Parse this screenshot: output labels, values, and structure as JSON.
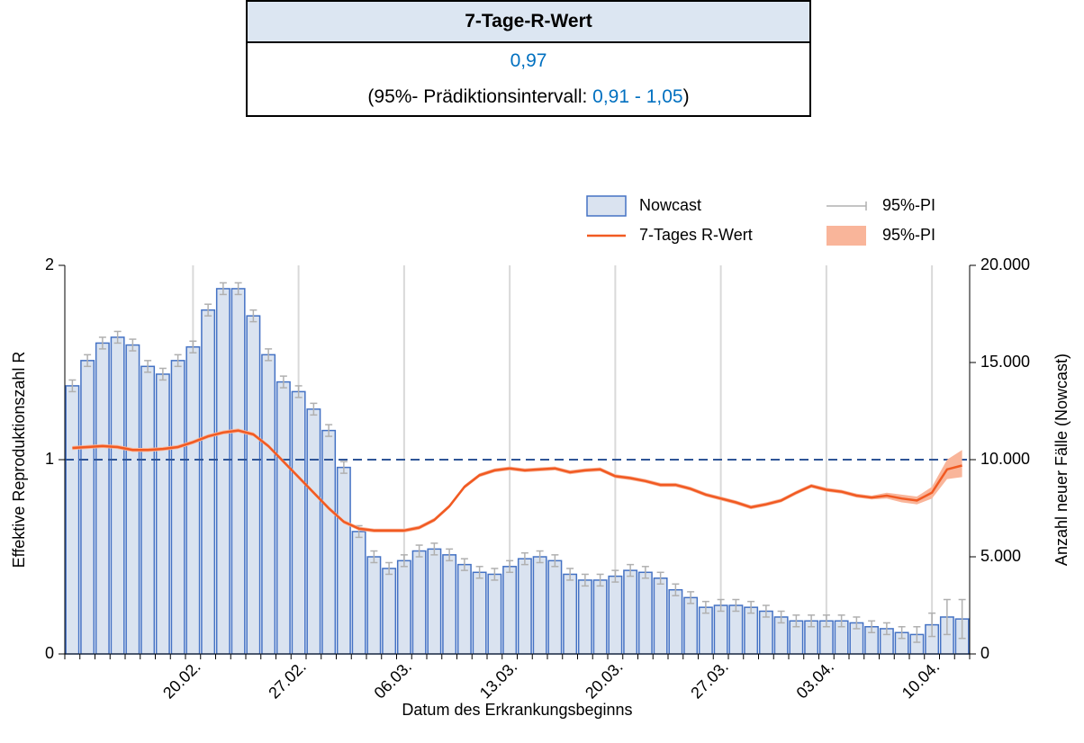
{
  "summary": {
    "title": "7-Tage-R-Wert",
    "value": "0,97",
    "interval_prefix": "(95%- Prädiktionsintervall: ",
    "interval": "0,91 - 1,05",
    "interval_suffix": ")"
  },
  "chart_data": {
    "type": "bar-line",
    "x_label": "Datum des Erkrankungsbeginns",
    "y_label": "Effektive Reproduktionszahl R",
    "y2_label": "Anzahl neuer Fälle (Nowcast)",
    "categories": [
      null,
      null,
      null,
      null,
      null,
      null,
      null,
      null,
      "20.02.",
      null,
      null,
      null,
      null,
      null,
      null,
      "27.02.",
      null,
      null,
      null,
      null,
      null,
      null,
      "06.03.",
      null,
      null,
      null,
      null,
      null,
      null,
      "13.03.",
      null,
      null,
      null,
      null,
      null,
      null,
      "20.03.",
      null,
      null,
      null,
      null,
      null,
      null,
      "27.03.",
      null,
      null,
      null,
      null,
      null,
      null,
      "03.04.",
      null,
      null,
      null,
      null,
      null,
      null,
      "10.04.",
      null,
      null
    ],
    "ylim": [
      0,
      2
    ],
    "yticks": [
      0,
      1,
      2
    ],
    "y2lim": [
      0,
      20000
    ],
    "y2ticks": [
      0,
      {
        "value": 5000,
        "label": "5.000"
      },
      {
        "value": 10000,
        "label": "10.000"
      },
      {
        "value": 15000,
        "label": "15.000"
      },
      {
        "value": 20000,
        "label": "20.000"
      }
    ],
    "reference_line": 1,
    "reference_color": "#2f5597",
    "grid": true,
    "series": [
      {
        "name": "Nowcast",
        "kind": "bar",
        "axis": "y2",
        "color": "#dae3f0",
        "edge_color": "#4472c4",
        "values": [
          13800,
          15100,
          16000,
          16300,
          15900,
          14800,
          14400,
          15100,
          15800,
          17700,
          18800,
          18800,
          17400,
          15400,
          14000,
          13500,
          12600,
          11500,
          9600,
          6300,
          5000,
          4400,
          4800,
          5300,
          5400,
          5100,
          4600,
          4200,
          4100,
          4500,
          4900,
          5000,
          4800,
          4100,
          3800,
          3800,
          4000,
          4300,
          4200,
          3900,
          3300,
          2900,
          2400,
          2500,
          2500,
          2400,
          2200,
          1900,
          1700,
          1700,
          1700,
          1700,
          1600,
          1400,
          1300,
          1100,
          1000,
          1500,
          1900,
          1800
        ],
        "error_name": "95%-PI",
        "error_color": "#b0b0b0",
        "errors": [
          300,
          300,
          300,
          300,
          300,
          300,
          300,
          300,
          300,
          300,
          300,
          300,
          300,
          300,
          300,
          300,
          300,
          300,
          300,
          300,
          300,
          300,
          300,
          300,
          300,
          300,
          300,
          300,
          300,
          300,
          300,
          300,
          300,
          300,
          300,
          300,
          300,
          300,
          300,
          300,
          300,
          300,
          300,
          300,
          300,
          300,
          300,
          300,
          300,
          300,
          300,
          300,
          300,
          300,
          300,
          300,
          400,
          600,
          900,
          1000
        ]
      },
      {
        "name": "7-Tages R-Wert",
        "kind": "line",
        "axis": "y",
        "color": "#f15a22",
        "values": [
          1.06,
          1.065,
          1.07,
          1.065,
          1.05,
          1.05,
          1.055,
          1.065,
          1.09,
          1.12,
          1.14,
          1.15,
          1.13,
          1.07,
          0.99,
          0.91,
          0.83,
          0.75,
          0.68,
          0.645,
          0.635,
          0.635,
          0.635,
          0.65,
          0.69,
          0.76,
          0.86,
          0.92,
          0.945,
          0.955,
          0.945,
          0.95,
          0.955,
          0.935,
          0.945,
          0.95,
          0.915,
          0.905,
          0.89,
          0.87,
          0.87,
          0.85,
          0.82,
          0.8,
          0.78,
          0.755,
          0.77,
          0.79,
          0.83,
          0.865,
          0.845,
          0.835,
          0.815,
          0.805,
          0.815,
          0.8,
          0.79,
          0.83,
          0.95,
          0.97
        ],
        "band_name": "95%-PI",
        "band_color": "#f9b59a",
        "lower": [
          1.05,
          1.055,
          1.06,
          1.055,
          1.04,
          1.04,
          1.045,
          1.055,
          1.08,
          1.11,
          1.13,
          1.14,
          1.12,
          1.06,
          0.98,
          0.9,
          0.82,
          0.74,
          0.67,
          0.635,
          0.625,
          0.625,
          0.625,
          0.64,
          0.68,
          0.75,
          0.85,
          0.91,
          0.935,
          0.945,
          0.935,
          0.94,
          0.945,
          0.925,
          0.935,
          0.94,
          0.905,
          0.895,
          0.88,
          0.86,
          0.86,
          0.84,
          0.81,
          0.79,
          0.77,
          0.745,
          0.76,
          0.78,
          0.82,
          0.855,
          0.835,
          0.825,
          0.805,
          0.795,
          0.8,
          0.78,
          0.77,
          0.8,
          0.9,
          0.91
        ],
        "upper": [
          1.07,
          1.075,
          1.08,
          1.075,
          1.06,
          1.06,
          1.065,
          1.075,
          1.1,
          1.13,
          1.15,
          1.16,
          1.14,
          1.08,
          1.0,
          0.92,
          0.84,
          0.76,
          0.69,
          0.655,
          0.645,
          0.645,
          0.645,
          0.66,
          0.7,
          0.77,
          0.87,
          0.93,
          0.955,
          0.965,
          0.955,
          0.96,
          0.965,
          0.945,
          0.955,
          0.96,
          0.925,
          0.915,
          0.9,
          0.88,
          0.88,
          0.86,
          0.83,
          0.81,
          0.79,
          0.765,
          0.78,
          0.8,
          0.84,
          0.875,
          0.855,
          0.845,
          0.825,
          0.815,
          0.83,
          0.82,
          0.81,
          0.86,
          1.0,
          1.05
        ]
      }
    ]
  }
}
